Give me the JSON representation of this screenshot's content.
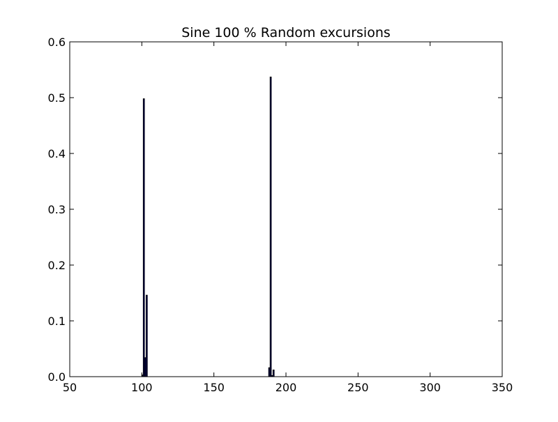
{
  "chart_data": {
    "type": "bar",
    "title": "Sine 100 % Random excursions",
    "xlabel": "",
    "ylabel": "",
    "xlim": [
      50,
      350
    ],
    "ylim": [
      0,
      0.6
    ],
    "xticks": [
      50,
      100,
      150,
      200,
      250,
      300,
      350
    ],
    "xtick_labels": [
      "50",
      "100",
      "150",
      "200",
      "250",
      "300",
      "350"
    ],
    "yticks": [
      0.0,
      0.1,
      0.2,
      0.3,
      0.4,
      0.5,
      0.6
    ],
    "ytick_labels": [
      "0.0",
      "0.1",
      "0.2",
      "0.3",
      "0.4",
      "0.5",
      "0.6"
    ],
    "grid": false,
    "bar_color": "#000080",
    "edge_color": "#000000",
    "bar_width": 0.8,
    "x": [
      100,
      101,
      102,
      103,
      188,
      189,
      190,
      191
    ],
    "values": [
      0.003,
      0.498,
      0.034,
      0.146,
      0.016,
      0.537,
      0.002,
      0.012
    ]
  }
}
